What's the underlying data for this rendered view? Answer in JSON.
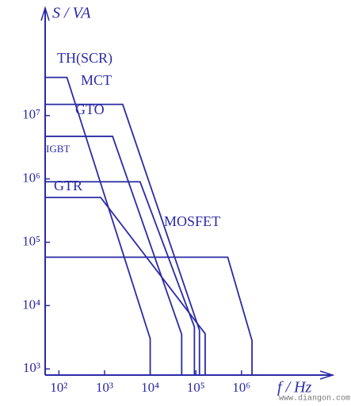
{
  "chart_data": {
    "type": "line",
    "y_label": "S / VA",
    "x_label": "f / Hz",
    "watermark": "www.diangon.com",
    "log_x": true,
    "log_y": true,
    "color": "#2b2ba6",
    "xlim": [
      50,
      100000000
    ],
    "ylim": [
      800,
      500000000
    ],
    "xticks": [
      {
        "value": 100,
        "label": "10²"
      },
      {
        "value": 1000,
        "label": "10³"
      },
      {
        "value": 10000,
        "label": "10⁴"
      },
      {
        "value": 100000,
        "label": "10⁵"
      },
      {
        "value": 1000000,
        "label": "10⁶"
      }
    ],
    "yticks": [
      {
        "value": 1000,
        "label": "10³"
      },
      {
        "value": 10000,
        "label": "10⁴"
      },
      {
        "value": 100000,
        "label": "10⁵"
      },
      {
        "value": 1000000,
        "label": "10⁶"
      },
      {
        "value": 10000000,
        "label": "10⁷"
      }
    ],
    "series": [
      {
        "name": "TH(SCR)",
        "x": [
          50,
          150,
          10000,
          10000
        ],
        "values": [
          40000000,
          40000000,
          3000,
          800
        ]
      },
      {
        "name": "MCT",
        "x": [
          50,
          2500,
          120000,
          120000
        ],
        "values": [
          15000000,
          15000000,
          4100,
          800
        ]
      },
      {
        "name": "GTO",
        "x": [
          50,
          1500,
          49000,
          49000
        ],
        "values": [
          4700000,
          4700000,
          3500,
          800
        ]
      },
      {
        "name": "IGBT",
        "x": [
          50,
          6000,
          93000,
          93000
        ],
        "values": [
          900000,
          900000,
          4600,
          800
        ]
      },
      {
        "name": "GTR",
        "x": [
          50,
          820,
          160000,
          160000
        ],
        "values": [
          510000,
          510000,
          3600,
          800
        ]
      },
      {
        "name": "MOSFET",
        "x": [
          50,
          500000,
          1700000,
          1700000
        ],
        "values": [
          58000,
          58000,
          2800,
          800
        ]
      }
    ]
  }
}
